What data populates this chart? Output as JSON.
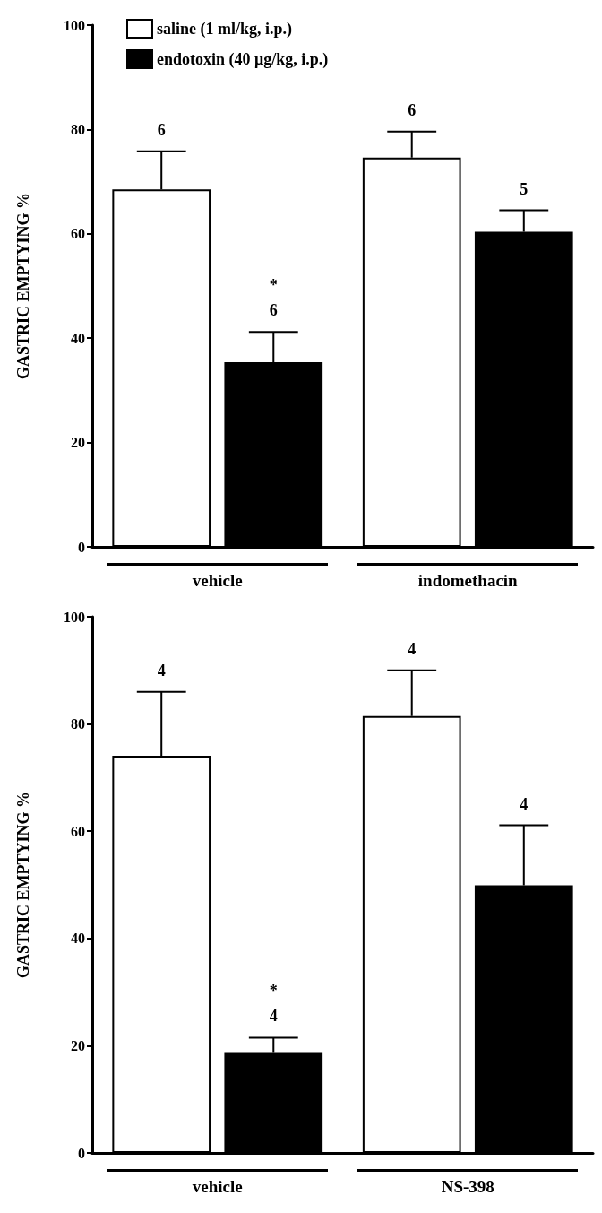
{
  "chart_data": [
    {
      "type": "bar",
      "ylabel": "GASTRIC EMPTYING %",
      "categories": [
        "vehicle",
        "indomethacin"
      ],
      "ylim": [
        0,
        100
      ],
      "yticks": [
        0,
        20,
        40,
        60,
        80,
        100
      ],
      "legend": "top left",
      "series": [
        {
          "name": "saline (1 ml/kg, i.p.)",
          "color": "#ffffff",
          "values": [
            68.5,
            74.6
          ],
          "errors": [
            [
              68.5,
              75.8
            ],
            [
              74.6,
              79.6
            ]
          ]
        },
        {
          "name": "endotoxin (40 μg/kg, i.p.)",
          "color": "#000000",
          "values": [
            35.4,
            60.4
          ],
          "errors": [
            [
              35.4,
              41.2
            ],
            [
              60.4,
              64.5
            ]
          ]
        }
      ],
      "annotations": [
        "6",
        "*\n6",
        "6",
        "5"
      ]
    },
    {
      "type": "bar",
      "ylabel": "GASTRIC EMPTYING %",
      "categories": [
        "vehicle",
        "NS-398"
      ],
      "ylim": [
        0,
        100
      ],
      "yticks": [
        0,
        20,
        40,
        60,
        80,
        100
      ],
      "series": [
        {
          "color": "#ffffff",
          "values": [
            74.1,
            81.5
          ],
          "errors": [
            [
              74.1,
              86.0
            ],
            [
              81.5,
              90.0
            ]
          ]
        },
        {
          "color": "#000000",
          "values": [
            18.8,
            49.9
          ],
          "errors": [
            [
              18.8,
              21.5
            ],
            [
              49.9,
              61.1
            ]
          ]
        }
      ],
      "annotations": [
        "4",
        "*\n4",
        "4",
        "4"
      ]
    }
  ]
}
